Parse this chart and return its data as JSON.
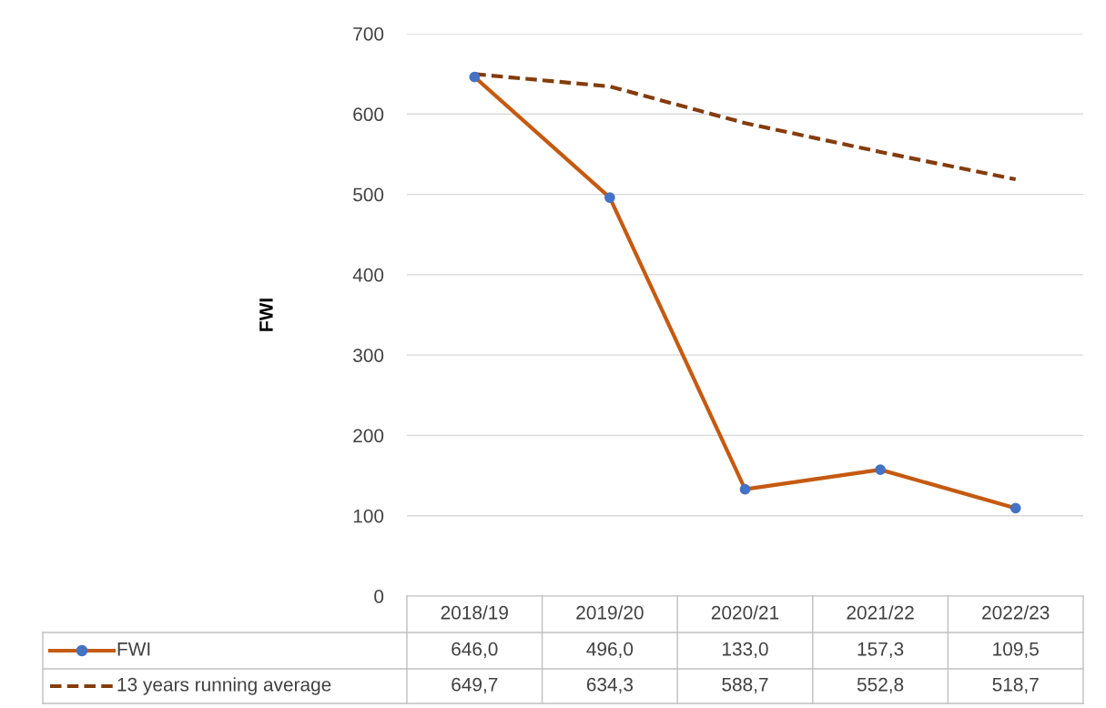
{
  "chart_data": {
    "type": "line",
    "ylabel": "FWI",
    "categories": [
      "2018/19",
      "2019/20",
      "2020/21",
      "2021/22",
      "2022/23"
    ],
    "series": [
      {
        "name": "FWI",
        "color": "#c55a11",
        "colors": [
          "#4472c4",
          "#4472c4",
          "#4472c4",
          "#4472c4",
          "#4472c4"
        ],
        "marker": "circle",
        "line_style": "solid",
        "values": [
          646.0,
          496.0,
          133.0,
          157.3,
          109.5
        ],
        "value_labels": [
          "646,0",
          "496,0",
          "133,0",
          "157,3",
          "109,5"
        ]
      },
      {
        "name": "13 years running average",
        "color": "#843c0c",
        "marker": "none",
        "line_style": "dashed",
        "values": [
          649.7,
          634.3,
          588.7,
          552.8,
          518.7
        ],
        "value_labels": [
          "649,7",
          "634,3",
          "588,7",
          "552,8",
          "518,7"
        ]
      }
    ],
    "ylim": [
      0,
      700
    ],
    "yticks": [
      0,
      100,
      200,
      300,
      400,
      500,
      600,
      700
    ],
    "grid": "y",
    "legend": "bottom"
  }
}
